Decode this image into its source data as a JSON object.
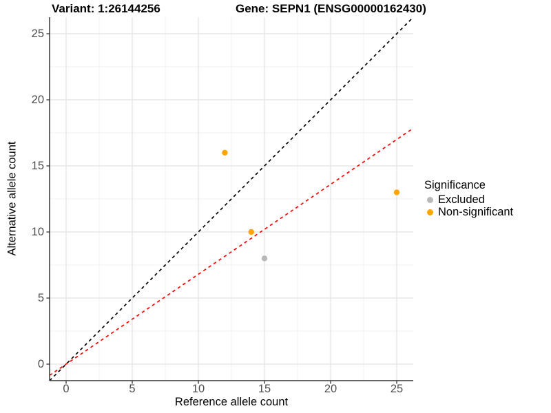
{
  "titles": {
    "variant": "Variant: 1:26144256",
    "gene": "Gene: SEPN1 (ENSG00000162430)"
  },
  "chart_data": {
    "type": "scatter",
    "xlabel": "Reference allele count",
    "ylabel": "Alternative allele count",
    "xlim": [
      -1.25,
      26.25
    ],
    "ylim": [
      -1.25,
      26.25
    ],
    "xticks": [
      0,
      5,
      10,
      15,
      20,
      25
    ],
    "yticks": [
      0,
      5,
      10,
      15,
      20,
      25
    ],
    "xminor": [
      2.5,
      7.5,
      12.5,
      17.5,
      22.5
    ],
    "yminor": [
      2.5,
      7.5,
      12.5,
      17.5,
      22.5
    ],
    "grid": true,
    "points": [
      {
        "x": 12,
        "y": 16,
        "series": "Non-significant"
      },
      {
        "x": 14,
        "y": 10,
        "series": "Non-significant"
      },
      {
        "x": 15,
        "y": 8,
        "series": "Excluded"
      },
      {
        "x": 25,
        "y": 13,
        "series": "Non-significant"
      }
    ],
    "lines": [
      {
        "name": "identity-line",
        "slope": 1,
        "intercept": 0,
        "color": "#000000",
        "style": "dashed"
      },
      {
        "name": "expected-ratio-line",
        "slope": 0.68,
        "intercept": 0,
        "color": "#FF0000",
        "style": "dashed"
      }
    ],
    "legend": {
      "title": "Significance",
      "position": "right",
      "entries": [
        {
          "label": "Excluded",
          "color": "#B8B8B8"
        },
        {
          "label": "Non-significant",
          "color": "#FFA500"
        }
      ]
    }
  },
  "colors": {
    "grid_major": "#E2E2E2",
    "grid_minor": "#F0F0F0",
    "axis_line": "#333333",
    "tick_label": "#4d4d4d",
    "point_excluded": "#B8B8B8",
    "point_non_significant": "#FFA500",
    "identity_line": "#000000",
    "ratio_line": "#FF0000"
  }
}
